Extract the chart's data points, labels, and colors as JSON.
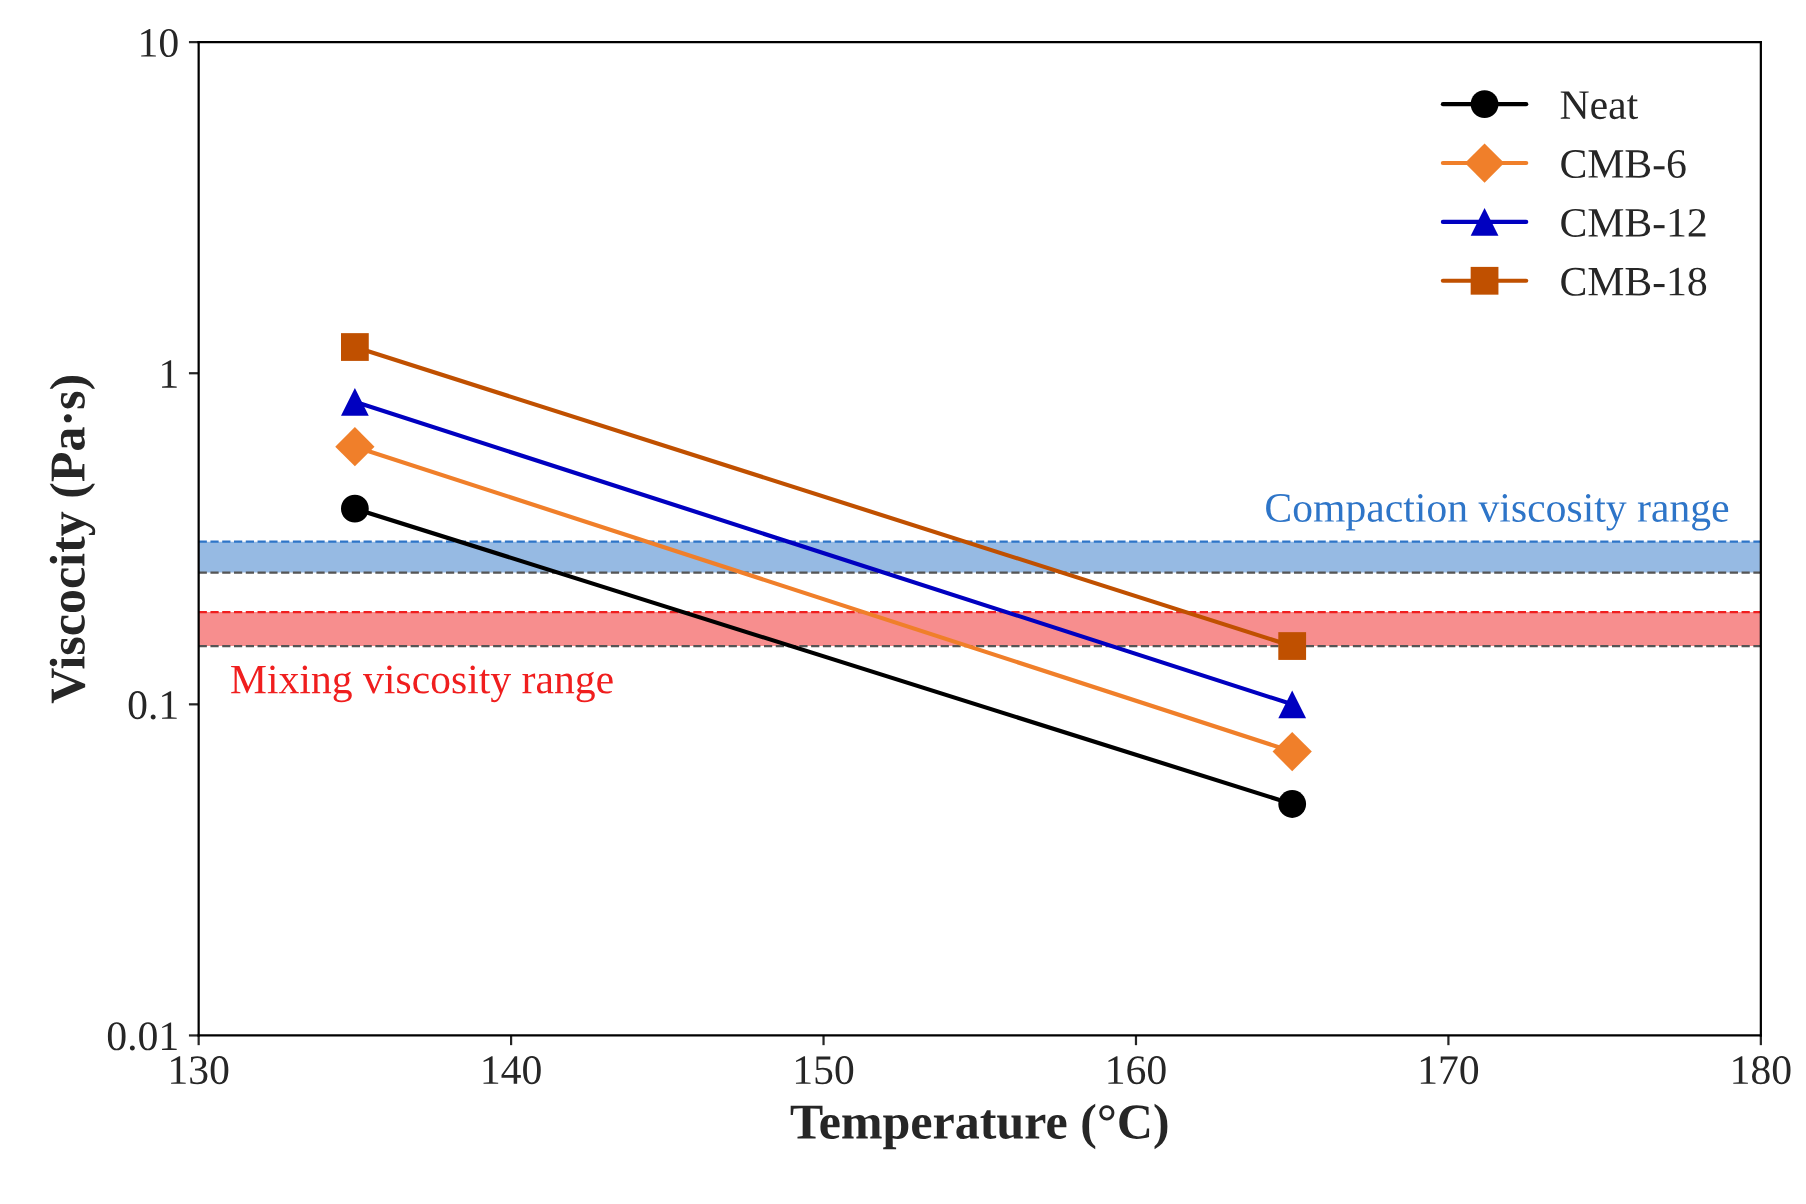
{
  "chart_data": {
    "type": "line",
    "xlabel": "Temperature (°C)",
    "ylabel": "Viscocity (Pa·s)",
    "x": [
      135,
      165
    ],
    "series": [
      {
        "name": "Neat",
        "color": "#000000",
        "marker": "circle",
        "values": [
          0.39,
          0.05
        ]
      },
      {
        "name": "CMB-6",
        "color": "#f07f2a",
        "marker": "diamond",
        "values": [
          0.6,
          0.072
        ]
      },
      {
        "name": "CMB-12",
        "color": "#0000c0",
        "marker": "triangle",
        "values": [
          0.82,
          0.1
        ]
      },
      {
        "name": "CMB-18",
        "color": "#c05000",
        "marker": "square",
        "values": [
          1.2,
          0.15
        ]
      }
    ],
    "log": "y",
    "xlim": [
      130,
      180
    ],
    "xticks": [
      130,
      140,
      150,
      160,
      170,
      180
    ],
    "ylim": [
      0.01,
      10
    ],
    "yticks": [
      0.01,
      0.1,
      1,
      10
    ],
    "bands": [
      {
        "axis": "y",
        "from": 0.25,
        "to": 0.31,
        "label": "Compaction viscosity range",
        "color": "#2e75c8"
      },
      {
        "axis": "y",
        "from": 0.15,
        "to": 0.19,
        "label": "Mixing viscosity range",
        "color": "#f01e1e"
      }
    ],
    "ref_lines": [
      {
        "axis": "y",
        "value": 0.31,
        "color": "#2e75c8",
        "line_style": "dashed"
      },
      {
        "axis": "y",
        "value": 0.25,
        "color": "#555555",
        "line_style": "dashed"
      },
      {
        "axis": "y",
        "value": 0.19,
        "color": "#f01e1e",
        "line_style": "dashed"
      },
      {
        "axis": "y",
        "value": 0.15,
        "color": "#555555",
        "line_style": "dashed"
      }
    ],
    "legend": "top right",
    "line_style": "solid"
  }
}
